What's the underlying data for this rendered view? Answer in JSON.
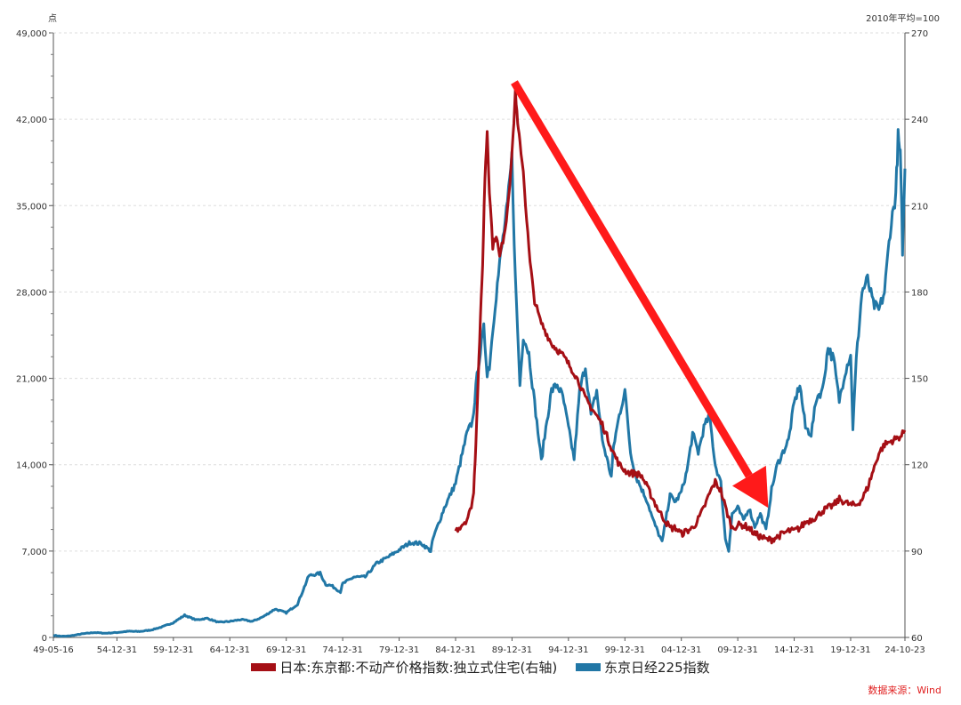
{
  "chart_data": {
    "type": "line",
    "title": "",
    "y_left_unit": "点",
    "y_right_unit": "2010年平均=100",
    "y_left_ticks": [
      "0",
      "7,000",
      "14,000",
      "21,000",
      "28,000",
      "35,000",
      "42,000",
      "49,000"
    ],
    "y_right_ticks": [
      "60",
      "90",
      "120",
      "150",
      "180",
      "210",
      "240",
      "270"
    ],
    "y_left_range": [
      0,
      49000
    ],
    "y_right_range": [
      60,
      270
    ],
    "x_ticks": [
      "49-05-16",
      "54-12-31",
      "59-12-31",
      "64-12-31",
      "69-12-31",
      "74-12-31",
      "79-12-31",
      "84-12-31",
      "89-12-31",
      "94-12-31",
      "99-12-31",
      "04-12-31",
      "09-12-31",
      "14-12-31",
      "19-12-31",
      "24-10-23"
    ],
    "x_tick_years": [
      1949.37,
      1955.0,
      1960.0,
      1965.0,
      1970.0,
      1975.0,
      1980.0,
      1985.0,
      1990.0,
      1995.0,
      2000.0,
      2005.0,
      2010.0,
      2015.0,
      2020.0,
      2024.81
    ],
    "grid": "horizontal dashed",
    "legend_position": "bottom",
    "series": [
      {
        "name": "日本:东京都:不动产价格指数:独立式住宅(右轴)",
        "axis": "right",
        "color": "#a50f15",
        "points": [
          [
            1985.0,
            97
          ],
          [
            1985.5,
            99
          ],
          [
            1986.0,
            101
          ],
          [
            1986.3,
            104
          ],
          [
            1986.6,
            110
          ],
          [
            1986.8,
            128
          ],
          [
            1987.0,
            150
          ],
          [
            1987.2,
            170
          ],
          [
            1987.4,
            190
          ],
          [
            1987.6,
            220
          ],
          [
            1987.8,
            236
          ],
          [
            1988.0,
            215
          ],
          [
            1988.3,
            196
          ],
          [
            1988.6,
            200
          ],
          [
            1988.9,
            192
          ],
          [
            1989.2,
            198
          ],
          [
            1989.5,
            205
          ],
          [
            1989.8,
            218
          ],
          [
            1990.1,
            234
          ],
          [
            1990.3,
            250
          ],
          [
            1990.5,
            238
          ],
          [
            1990.7,
            232
          ],
          [
            1991.0,
            222
          ],
          [
            1991.3,
            205
          ],
          [
            1991.6,
            190
          ],
          [
            1992.0,
            177
          ],
          [
            1992.5,
            170
          ],
          [
            1993.0,
            166
          ],
          [
            1993.5,
            162
          ],
          [
            1994.0,
            160
          ],
          [
            1994.5,
            158
          ],
          [
            1995.0,
            155
          ],
          [
            1995.5,
            152
          ],
          [
            1996.0,
            148
          ],
          [
            1996.5,
            143
          ],
          [
            1997.0,
            140
          ],
          [
            1997.5,
            137
          ],
          [
            1998.0,
            134
          ],
          [
            1998.5,
            129
          ],
          [
            1999.0,
            124
          ],
          [
            1999.5,
            120
          ],
          [
            2000.0,
            118
          ],
          [
            2000.5,
            117
          ],
          [
            2001.0,
            117
          ],
          [
            2001.5,
            116
          ],
          [
            2002.0,
            112
          ],
          [
            2002.5,
            108
          ],
          [
            2003.0,
            104
          ],
          [
            2003.5,
            101
          ],
          [
            2004.0,
            98
          ],
          [
            2004.5,
            98
          ],
          [
            2005.0,
            96
          ],
          [
            2005.5,
            97
          ],
          [
            2006.0,
            98
          ],
          [
            2006.5,
            101
          ],
          [
            2007.0,
            105
          ],
          [
            2007.5,
            110
          ],
          [
            2008.0,
            114
          ],
          [
            2008.5,
            111
          ],
          [
            2009.0,
            104
          ],
          [
            2009.5,
            98
          ],
          [
            2010.0,
            99
          ],
          [
            2010.5,
            99
          ],
          [
            2011.0,
            98
          ],
          [
            2011.5,
            96
          ],
          [
            2012.0,
            95
          ],
          [
            2012.5,
            94
          ],
          [
            2013.0,
            94
          ],
          [
            2013.5,
            95
          ],
          [
            2014.0,
            96
          ],
          [
            2014.5,
            97
          ],
          [
            2015.0,
            97
          ],
          [
            2015.5,
            98
          ],
          [
            2016.0,
            100
          ],
          [
            2016.5,
            101
          ],
          [
            2017.0,
            102
          ],
          [
            2017.5,
            104
          ],
          [
            2018.0,
            105
          ],
          [
            2018.5,
            106
          ],
          [
            2019.0,
            108
          ],
          [
            2019.5,
            107
          ],
          [
            2020.0,
            106
          ],
          [
            2020.5,
            106
          ],
          [
            2021.0,
            108
          ],
          [
            2021.5,
            112
          ],
          [
            2022.0,
            118
          ],
          [
            2022.5,
            124
          ],
          [
            2023.0,
            127
          ],
          [
            2023.5,
            128
          ],
          [
            2024.0,
            129
          ],
          [
            2024.5,
            130
          ],
          [
            2024.8,
            132
          ]
        ]
      },
      {
        "name": "东京日经225指数",
        "axis": "left",
        "color": "#2177a6",
        "points": [
          [
            1949.37,
            176
          ],
          [
            1950.0,
            100
          ],
          [
            1950.5,
            96
          ],
          [
            1951.0,
            150
          ],
          [
            1952.0,
            300
          ],
          [
            1953.0,
            400
          ],
          [
            1954.0,
            340
          ],
          [
            1955.0,
            400
          ],
          [
            1956.0,
            500
          ],
          [
            1957.0,
            480
          ],
          [
            1958.0,
            600
          ],
          [
            1959.0,
            850
          ],
          [
            1960.0,
            1200
          ],
          [
            1961.0,
            1800
          ],
          [
            1962.0,
            1420
          ],
          [
            1963.0,
            1550
          ],
          [
            1964.0,
            1220
          ],
          [
            1965.0,
            1300
          ],
          [
            1966.0,
            1450
          ],
          [
            1967.0,
            1300
          ],
          [
            1968.0,
            1700
          ],
          [
            1969.0,
            2300
          ],
          [
            1970.0,
            2000
          ],
          [
            1971.0,
            2700
          ],
          [
            1972.0,
            5000
          ],
          [
            1973.0,
            5200
          ],
          [
            1973.5,
            4300
          ],
          [
            1974.0,
            4200
          ],
          [
            1974.8,
            3700
          ],
          [
            1975.0,
            4350
          ],
          [
            1976.0,
            4900
          ],
          [
            1977.0,
            4900
          ],
          [
            1978.0,
            6000
          ],
          [
            1979.0,
            6500
          ],
          [
            1980.0,
            7100
          ],
          [
            1981.0,
            7700
          ],
          [
            1982.0,
            7600
          ],
          [
            1982.8,
            7000
          ],
          [
            1983.0,
            8000
          ],
          [
            1984.0,
            10500
          ],
          [
            1985.0,
            12500
          ],
          [
            1986.0,
            16500
          ],
          [
            1986.5,
            17500
          ],
          [
            1987.0,
            22000
          ],
          [
            1987.5,
            25000
          ],
          [
            1987.8,
            21500
          ],
          [
            1988.0,
            22000
          ],
          [
            1988.5,
            27000
          ],
          [
            1989.0,
            31000
          ],
          [
            1989.6,
            35000
          ],
          [
            1989.99,
            38915
          ],
          [
            1990.3,
            29000
          ],
          [
            1990.7,
            20500
          ],
          [
            1991.0,
            24500
          ],
          [
            1991.5,
            23000
          ],
          [
            1992.0,
            19000
          ],
          [
            1992.6,
            14300
          ],
          [
            1993.0,
            17000
          ],
          [
            1993.5,
            20000
          ],
          [
            1994.0,
            20500
          ],
          [
            1994.5,
            19500
          ],
          [
            1995.0,
            17000
          ],
          [
            1995.5,
            14500
          ],
          [
            1996.0,
            20000
          ],
          [
            1996.5,
            22000
          ],
          [
            1997.0,
            18000
          ],
          [
            1997.5,
            20000
          ],
          [
            1998.0,
            16000
          ],
          [
            1998.8,
            13000
          ],
          [
            1999.0,
            15500
          ],
          [
            1999.5,
            18000
          ],
          [
            2000.0,
            20000
          ],
          [
            2000.5,
            15000
          ],
          [
            2001.0,
            13000
          ],
          [
            2001.5,
            12000
          ],
          [
            2002.0,
            11000
          ],
          [
            2002.5,
            9500
          ],
          [
            2003.3,
            7700
          ],
          [
            2003.8,
            10500
          ],
          [
            2004.0,
            11500
          ],
          [
            2004.5,
            11000
          ],
          [
            2005.0,
            11800
          ],
          [
            2005.5,
            13500
          ],
          [
            2006.0,
            16500
          ],
          [
            2006.5,
            15000
          ],
          [
            2007.0,
            17000
          ],
          [
            2007.5,
            18000
          ],
          [
            2008.0,
            14000
          ],
          [
            2008.5,
            12500
          ],
          [
            2008.9,
            8000
          ],
          [
            2009.2,
            7100
          ],
          [
            2009.5,
            10000
          ],
          [
            2010.0,
            10500
          ],
          [
            2010.5,
            9500
          ],
          [
            2011.0,
            10500
          ],
          [
            2011.5,
            9000
          ],
          [
            2012.0,
            10000
          ],
          [
            2012.5,
            8700
          ],
          [
            2013.0,
            12000
          ],
          [
            2013.5,
            14000
          ],
          [
            2014.0,
            15000
          ],
          [
            2014.5,
            16000
          ],
          [
            2015.0,
            19000
          ],
          [
            2015.5,
            20500
          ],
          [
            2016.0,
            17000
          ],
          [
            2016.5,
            16500
          ],
          [
            2017.0,
            19500
          ],
          [
            2017.5,
            20000
          ],
          [
            2018.0,
            23500
          ],
          [
            2018.5,
            22500
          ],
          [
            2018.99,
            19200
          ],
          [
            2019.5,
            21500
          ],
          [
            2020.0,
            23000
          ],
          [
            2020.2,
            17000
          ],
          [
            2020.5,
            22500
          ],
          [
            2021.0,
            28000
          ],
          [
            2021.5,
            29000
          ],
          [
            2022.0,
            27000
          ],
          [
            2022.5,
            26500
          ],
          [
            2023.0,
            28000
          ],
          [
            2023.5,
            33000
          ],
          [
            2024.0,
            36000
          ],
          [
            2024.2,
            40500
          ],
          [
            2024.4,
            39000
          ],
          [
            2024.6,
            31500
          ],
          [
            2024.81,
            38000
          ]
        ]
      }
    ],
    "annotations": [
      {
        "type": "arrow",
        "color": "#ff1a1a",
        "from": [
          1990.2,
          45000
        ],
        "to": [
          2012.7,
          10500
        ]
      }
    ]
  },
  "legend": {
    "items": [
      {
        "label": "日本:东京都:不动产价格指数:独立式住宅(右轴)",
        "color": "#a50f15"
      },
      {
        "label": "东京日经225指数",
        "color": "#2177a6"
      }
    ]
  },
  "source": {
    "text": "数据来源：Wind",
    "color": "#e02020"
  }
}
